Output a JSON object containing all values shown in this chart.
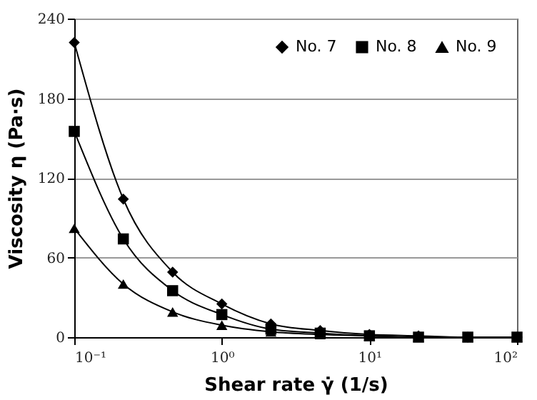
{
  "chart_data": {
    "type": "line",
    "xlabel": "Shear rate γ̇ (1/s)",
    "ylabel": "Viscosity η (Pa·s)",
    "x": [
      0.1,
      0.215,
      0.464,
      1,
      2.15,
      4.64,
      10,
      21.5,
      46.4,
      100
    ],
    "series": [
      {
        "name": "No. 7",
        "color": "#000000",
        "marker": "diamond",
        "values": [
          222,
          104,
          49,
          25,
          10,
          5,
          2,
          1,
          0,
          0
        ]
      },
      {
        "name": "No. 8",
        "color": "#000000",
        "marker": "square",
        "values": [
          155,
          74,
          35,
          17,
          6,
          3,
          1,
          0,
          0,
          0
        ]
      },
      {
        "name": "No. 9",
        "color": "#000000",
        "marker": "triangle",
        "values": [
          82,
          40,
          19,
          9,
          4,
          2,
          1,
          0,
          0,
          0
        ]
      }
    ],
    "log": "x",
    "xlim": [
      0.1,
      100
    ],
    "xticks": [
      {
        "value": 0.1,
        "label": "10⁻¹"
      },
      {
        "value": 1,
        "label": "10⁰"
      },
      {
        "value": 10,
        "label": "10¹"
      },
      {
        "value": 100,
        "label": "10²"
      }
    ],
    "ylim": [
      0,
      240
    ],
    "yticks": [
      0,
      60,
      120,
      180,
      240
    ],
    "grid": "y",
    "legend": "top right",
    "line_style": "solid"
  }
}
